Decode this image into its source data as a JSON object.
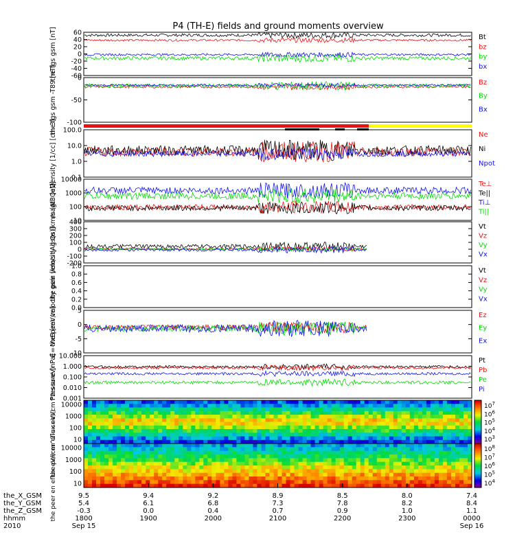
{
  "title": "P4 (TH-E) fields and ground moments overview",
  "colors": {
    "black": "#000000",
    "red": "#ee1111",
    "green": "#00dd00",
    "blue": "#1111ee",
    "yellow": "#ffff00"
  },
  "chart_data": {
    "type": "line",
    "x_range": [
      "1800",
      "0000"
    ],
    "x_ticks": {
      "hhmm": [
        "1800",
        "1900",
        "2000",
        "2100",
        "2200",
        "2300",
        "0000"
      ],
      "the_X_GSM": [
        "9.5",
        "9.4",
        "9.2",
        "8.9",
        "8.5",
        "8.0",
        "7.4"
      ],
      "the_Y_GSM": [
        "5.4",
        "6.1",
        "6.8",
        "7.3",
        "7.8",
        "8.2",
        "8.4"
      ],
      "the_Z_GSM": [
        "-0.3",
        "0.0",
        "0.4",
        "0.7",
        "0.9",
        "1.0",
        "1.1"
      ]
    },
    "x_row_labels": [
      "the_X_GSM",
      "the_Y_GSM",
      "the_Z_GSM",
      "hhmm",
      "2010"
    ],
    "date_labels": [
      "Sep 15",
      "Sep 16"
    ],
    "panels": [
      {
        "id": "fgs",
        "ylabel": "the fgs gsm [nT]",
        "yticks": [
          "60",
          "40",
          "20",
          "0",
          "-20",
          "-40",
          "-60"
        ],
        "ylim": [
          -60,
          60
        ],
        "legend": [
          "Bt",
          "bz",
          "by",
          "bx"
        ],
        "series": [
          {
            "name": "Bt",
            "color": "black",
            "level": 52,
            "noise": 4
          },
          {
            "name": "bz",
            "color": "red",
            "level": 38,
            "noise": 3
          },
          {
            "name": "by",
            "color": "green",
            "level": -12,
            "noise": 5
          },
          {
            "name": "bx",
            "color": "blue",
            "level": -2,
            "noise": 3
          }
        ]
      },
      {
        "id": "fgs-model",
        "ylabel": "the fgs gsm -T89 [nT]",
        "yticks": [
          "0",
          "-50",
          "-100"
        ],
        "ylim": [
          -110,
          25
        ],
        "legend": [
          "Bz",
          "By",
          "Bx"
        ],
        "series": [
          {
            "name": "Bz",
            "color": "red",
            "level": -3,
            "noise": 4
          },
          {
            "name": "By",
            "color": "green",
            "level": 0,
            "noise": 6
          },
          {
            "name": "Bx",
            "color": "blue",
            "level": 2,
            "noise": 3
          }
        ]
      },
      {
        "id": "density",
        "ylabel": "Density [1/cc] [cm-3]",
        "yticks": [
          "100.0",
          "10.0",
          "1.0",
          "0.1"
        ],
        "ylim": [
          0.1,
          100
        ],
        "log": true,
        "legend": [
          "Ne",
          "Ni",
          "Npot"
        ],
        "series": [
          {
            "name": "Ne",
            "color": "red",
            "level": 4,
            "noise": 2
          },
          {
            "name": "Ni",
            "color": "black",
            "level": 5,
            "noise": 2
          },
          {
            "name": "Npot",
            "color": "blue",
            "level": 3,
            "noise": 1.5
          }
        ]
      },
      {
        "id": "temperature",
        "ylabel": "magt3 [eV]",
        "yticks": [
          "10000",
          "1000",
          "100",
          "10"
        ],
        "ylim": [
          10,
          10000
        ],
        "log": true,
        "legend": [
          "Te⊥",
          "Te||",
          "Ti⊥",
          "Ti||"
        ],
        "series": [
          {
            "name": "Te⊥",
            "color": "red",
            "level": 90,
            "noise": 1.6
          },
          {
            "name": "Te||",
            "color": "black",
            "level": 80,
            "noise": 1.6
          },
          {
            "name": "Ti⊥",
            "color": "blue",
            "level": 1500,
            "noise": 1.8
          },
          {
            "name": "Ti||",
            "color": "green",
            "level": 600,
            "noise": 1.8
          }
        ]
      },
      {
        "id": "peir-velocity",
        "ylabel": "the peir velocity gsm [km/s (All Qs)]",
        "yticks": [
          "400",
          "300",
          "200",
          "100",
          "0",
          "-100",
          "-200"
        ],
        "ylim": [
          -200,
          400
        ],
        "legend": [
          "Vt",
          "Vz",
          "Vy",
          "Vx"
        ],
        "series": [
          {
            "name": "Vt",
            "color": "black",
            "level": 40,
            "noise": 30
          },
          {
            "name": "Vz",
            "color": "red",
            "level": 5,
            "noise": 15
          },
          {
            "name": "Vy",
            "color": "green",
            "level": 0,
            "noise": 15
          },
          {
            "name": "Vx",
            "color": "blue",
            "level": -10,
            "noise": 20
          }
        ]
      },
      {
        "id": "peer-velocity",
        "ylabel": "the peer velocity gsm [km/s (All Qs)]",
        "yticks": [
          "1.0",
          "0.8",
          "0.6",
          "0.4",
          "0.2",
          "0.0"
        ],
        "ylim": [
          0,
          1
        ],
        "legend": [
          "Vt",
          "Vz",
          "Vy",
          "Vx"
        ],
        "series": []
      },
      {
        "id": "efield",
        "ylabel": "E=-VxB [mV/m]",
        "yticks": [
          "5",
          "0",
          "-5",
          "-10"
        ],
        "ylim": [
          -12,
          8
        ],
        "legend": [
          "Ez",
          "Ey",
          "Ex"
        ],
        "series": [
          {
            "name": "Ez",
            "color": "red",
            "level": 0,
            "noise": 1.2
          },
          {
            "name": "Ey",
            "color": "green",
            "level": -0.5,
            "noise": 1.5
          },
          {
            "name": "Ex",
            "color": "blue",
            "level": -0.5,
            "noise": 1.8
          }
        ]
      },
      {
        "id": "pressure",
        "ylabel": "Pressure [nPa]",
        "yticks": [
          "10.000",
          "1.000",
          "0.100",
          "0.010",
          "0.001"
        ],
        "ylim": [
          0.001,
          10
        ],
        "log": true,
        "legend": [
          "Pt",
          "Pb",
          "Pe",
          "Pi"
        ],
        "series": [
          {
            "name": "Pt",
            "color": "black",
            "level": 0.9,
            "noise": 1.3
          },
          {
            "name": "Pb",
            "color": "red",
            "level": 0.7,
            "noise": 1.3
          },
          {
            "name": "Pe",
            "color": "green",
            "level": 0.03,
            "noise": 1.4
          },
          {
            "name": "Pi",
            "color": "blue",
            "level": 0.2,
            "noise": 1.3
          }
        ]
      }
    ],
    "spectrograms": [
      {
        "id": "peir-spectrogram",
        "ylabel": "the peir en eflux eV/(cm^2-s-sr-eV)",
        "yticks": [
          "10000",
          "1000",
          "100",
          "10"
        ],
        "colorbar_ticks": [
          "10^7",
          "10^6",
          "10^5",
          "10^4",
          "10^3"
        ]
      },
      {
        "id": "peer-spectrogram",
        "ylabel": "the peer en eflux eV/(cm^2-s-sr-eV)",
        "yticks": [
          "10000",
          "1000",
          "100",
          "10"
        ],
        "colorbar_ticks": [
          "10^8",
          "10^7",
          "10^6",
          "10^5",
          "10^4"
        ]
      }
    ]
  }
}
